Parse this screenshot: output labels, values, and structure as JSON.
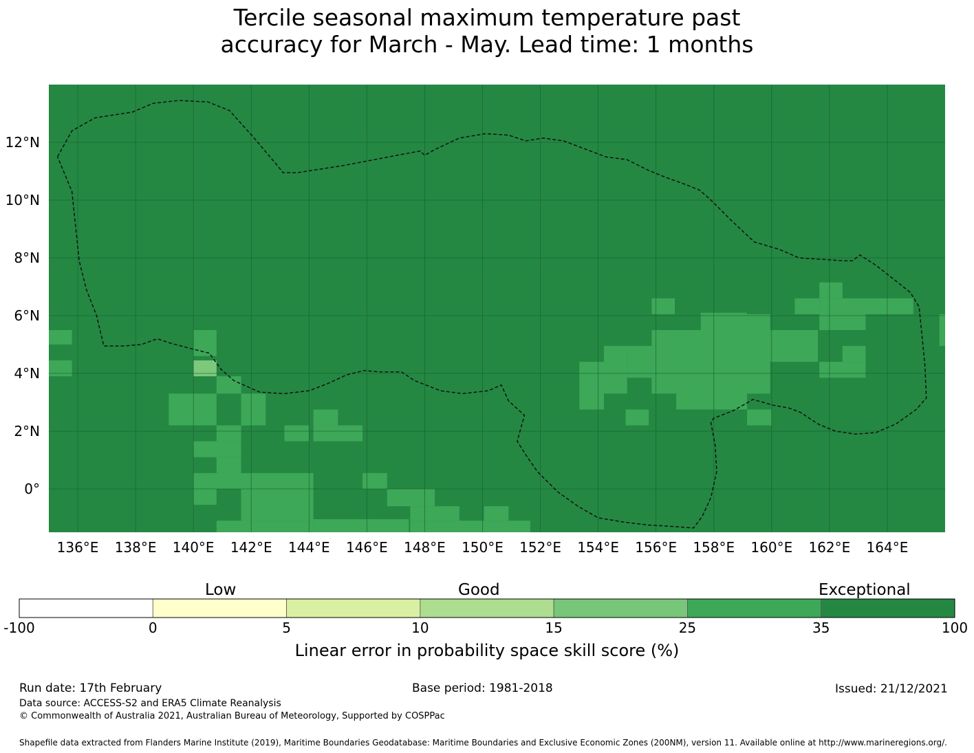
{
  "title_line1": "Tercile seasonal maximum temperature past",
  "title_line2": "accuracy for March - May. Lead time: 1 months",
  "map": {
    "lon_range": [
      135,
      166
    ],
    "lat_range": [
      -1.5,
      14
    ],
    "lon_ticks": [
      "136°E",
      "138°E",
      "140°E",
      "142°E",
      "144°E",
      "146°E",
      "148°E",
      "150°E",
      "152°E",
      "154°E",
      "156°E",
      "158°E",
      "160°E",
      "162°E",
      "164°E"
    ],
    "lat_ticks": [
      "12°N",
      "10°N",
      "8°N",
      "6°N",
      "4°N",
      "2°N",
      "0°"
    ],
    "background_color": "#248843",
    "cell_colors": {
      "A": "#3da858",
      "B": "#7dc97c"
    },
    "cells": [
      {
        "lon": 135,
        "lat": 5,
        "w": 0.8,
        "h": 0.5,
        "c": "A"
      },
      {
        "lon": 135,
        "lat": 3.9,
        "w": 0.8,
        "h": 0.55,
        "c": "A"
      },
      {
        "lon": 140,
        "lat": 4.6,
        "w": 0.8,
        "h": 0.9,
        "c": "A"
      },
      {
        "lon": 140,
        "lat": 3.9,
        "w": 0.8,
        "h": 0.55,
        "c": "B"
      },
      {
        "lon": 140.8,
        "lat": 3.3,
        "w": 0.85,
        "h": 0.6,
        "c": "A"
      },
      {
        "lon": 139.15,
        "lat": 2.2,
        "w": 1.65,
        "h": 1.1,
        "c": "A"
      },
      {
        "lon": 141.65,
        "lat": 2.2,
        "w": 0.85,
        "h": 1.1,
        "c": "A"
      },
      {
        "lon": 143.15,
        "lat": 1.65,
        "w": 0.85,
        "h": 0.55,
        "c": "A"
      },
      {
        "lon": 144.15,
        "lat": 1.65,
        "w": 1.7,
        "h": 0.55,
        "c": "A"
      },
      {
        "lon": 144.15,
        "lat": 2.2,
        "w": 0.85,
        "h": 0.55,
        "c": "A"
      },
      {
        "lon": 140.8,
        "lat": 1.65,
        "w": 0.85,
        "h": 0.55,
        "c": "A"
      },
      {
        "lon": 140,
        "lat": 1.1,
        "w": 1.65,
        "h": 0.55,
        "c": "A"
      },
      {
        "lon": 140.8,
        "lat": 0.55,
        "w": 0.85,
        "h": 0.55,
        "c": "A"
      },
      {
        "lon": 140,
        "lat": 0,
        "w": 4.15,
        "h": 0.55,
        "c": "A"
      },
      {
        "lon": 140,
        "lat": -0.55,
        "w": 0.8,
        "h": 0.55,
        "c": "A"
      },
      {
        "lon": 141.65,
        "lat": -1.1,
        "w": 2.5,
        "h": 1.1,
        "c": "A"
      },
      {
        "lon": 140.8,
        "lat": -1.5,
        "w": 3.35,
        "h": 0.4,
        "c": "A"
      },
      {
        "lon": 144.15,
        "lat": -1.5,
        "w": 3.3,
        "h": 0.45,
        "c": "A"
      },
      {
        "lon": 145.85,
        "lat": 0,
        "w": 0.85,
        "h": 0.55,
        "c": "A"
      },
      {
        "lon": 146.7,
        "lat": -0.6,
        "w": 1.65,
        "h": 0.6,
        "c": "A"
      },
      {
        "lon": 147.5,
        "lat": -1.1,
        "w": 1.7,
        "h": 0.5,
        "c": "A"
      },
      {
        "lon": 147.5,
        "lat": -1.5,
        "w": 2.55,
        "h": 0.4,
        "c": "A"
      },
      {
        "lon": 150.05,
        "lat": -1.1,
        "w": 0.85,
        "h": 0.5,
        "c": "A"
      },
      {
        "lon": 150.05,
        "lat": -1.5,
        "w": 1.6,
        "h": 0.4,
        "c": "A"
      },
      {
        "lon": 153.35,
        "lat": 2.75,
        "w": 0.85,
        "h": 1.65,
        "c": "A"
      },
      {
        "lon": 154.2,
        "lat": 3.3,
        "w": 0.8,
        "h": 1.65,
        "c": "A"
      },
      {
        "lon": 155,
        "lat": 3.85,
        "w": 0.85,
        "h": 1.1,
        "c": "A"
      },
      {
        "lon": 155.85,
        "lat": 3.3,
        "w": 0.85,
        "h": 2.2,
        "c": "A"
      },
      {
        "lon": 156.7,
        "lat": 2.75,
        "w": 2.45,
        "h": 2.75,
        "c": "A"
      },
      {
        "lon": 157.55,
        "lat": 5.5,
        "w": 1.6,
        "h": 0.6,
        "c": "A"
      },
      {
        "lon": 159.15,
        "lat": 3.3,
        "w": 0.8,
        "h": 2.75,
        "c": "A"
      },
      {
        "lon": 155.85,
        "lat": 6.05,
        "w": 0.8,
        "h": 0.55,
        "c": "A"
      },
      {
        "lon": 154.95,
        "lat": 2.2,
        "w": 0.8,
        "h": 0.55,
        "c": "A"
      },
      {
        "lon": 159.15,
        "lat": 2.2,
        "w": 0.85,
        "h": 0.55,
        "c": "A"
      },
      {
        "lon": 159.95,
        "lat": 4.4,
        "w": 1.65,
        "h": 1.1,
        "c": "A"
      },
      {
        "lon": 160.8,
        "lat": 6.05,
        "w": 0.85,
        "h": 0.55,
        "c": "A"
      },
      {
        "lon": 161.65,
        "lat": 5.5,
        "w": 1.6,
        "h": 1.1,
        "c": "A"
      },
      {
        "lon": 161.65,
        "lat": 6.6,
        "w": 0.8,
        "h": 0.55,
        "c": "A"
      },
      {
        "lon": 163.25,
        "lat": 6.05,
        "w": 1.65,
        "h": 0.55,
        "c": "A"
      },
      {
        "lon": 161.65,
        "lat": 3.85,
        "w": 1.6,
        "h": 0.55,
        "c": "A"
      },
      {
        "lon": 162.45,
        "lat": 4.4,
        "w": 0.8,
        "h": 0.55,
        "c": "A"
      },
      {
        "lon": 165.8,
        "lat": 4.95,
        "w": 0.2,
        "h": 1.1,
        "c": "A"
      }
    ],
    "boundary": [
      [
        135.3,
        11.5
      ],
      [
        135.8,
        12.4
      ],
      [
        136.6,
        12.85
      ],
      [
        137.9,
        13.05
      ],
      [
        138.6,
        13.35
      ],
      [
        139.5,
        13.45
      ],
      [
        140.5,
        13.4
      ],
      [
        141.25,
        13.1
      ],
      [
        142.1,
        12.15
      ],
      [
        142.9,
        11.2
      ],
      [
        143.1,
        10.95
      ],
      [
        143.6,
        10.95
      ],
      [
        145.2,
        11.2
      ],
      [
        147.3,
        11.6
      ],
      [
        147.85,
        11.7
      ],
      [
        148,
        11.55
      ],
      [
        148.35,
        11.75
      ],
      [
        149.2,
        12.15
      ],
      [
        150.1,
        12.3
      ],
      [
        150.9,
        12.25
      ],
      [
        151.5,
        12.05
      ],
      [
        152.1,
        12.15
      ],
      [
        152.8,
        12.05
      ],
      [
        153.6,
        11.75
      ],
      [
        154.25,
        11.5
      ],
      [
        155,
        11.4
      ],
      [
        155.7,
        11.05
      ],
      [
        156.3,
        10.8
      ],
      [
        157,
        10.55
      ],
      [
        157.5,
        10.35
      ],
      [
        157.85,
        10.05
      ],
      [
        158.6,
        9.3
      ],
      [
        159.4,
        8.55
      ],
      [
        160.25,
        8.3
      ],
      [
        160.95,
        8
      ],
      [
        162.5,
        7.9
      ],
      [
        162.8,
        7.9
      ],
      [
        163.05,
        8.1
      ],
      [
        163.6,
        7.75
      ],
      [
        164.3,
        7.2
      ],
      [
        164.8,
        6.8
      ],
      [
        165.1,
        6.3
      ],
      [
        165.2,
        5.3
      ],
      [
        165.3,
        4.3
      ],
      [
        165.35,
        3.15
      ],
      [
        165.0,
        2.75
      ],
      [
        164.3,
        2.25
      ],
      [
        163.6,
        1.95
      ],
      [
        162.9,
        1.9
      ],
      [
        162.2,
        2
      ],
      [
        161.6,
        2.25
      ],
      [
        161.0,
        2.65
      ],
      [
        160.6,
        2.8
      ],
      [
        160.05,
        2.9
      ],
      [
        159.35,
        3.1
      ],
      [
        159.1,
        2.95
      ],
      [
        158.65,
        2.7
      ],
      [
        158.0,
        2.45
      ],
      [
        157.9,
        2.3
      ],
      [
        158.05,
        1.5
      ],
      [
        158.1,
        0.6
      ],
      [
        157.9,
        -0.3
      ],
      [
        157.6,
        -0.95
      ],
      [
        157.3,
        -1.35
      ],
      [
        156.6,
        -1.3
      ],
      [
        155.75,
        -1.25
      ],
      [
        154.9,
        -1.15
      ],
      [
        154.0,
        -1.0
      ],
      [
        153.3,
        -0.6
      ],
      [
        152.6,
        -0.1
      ],
      [
        151.9,
        0.6
      ],
      [
        151.55,
        1.1
      ],
      [
        151.2,
        1.65
      ],
      [
        151.45,
        2.55
      ],
      [
        150.9,
        3.05
      ],
      [
        150.65,
        3.6
      ],
      [
        150.2,
        3.4
      ],
      [
        149.3,
        3.3
      ],
      [
        148.55,
        3.4
      ],
      [
        147.65,
        3.75
      ],
      [
        147.2,
        4.05
      ],
      [
        146.45,
        4.05
      ],
      [
        145.9,
        4.1
      ],
      [
        145.3,
        3.95
      ],
      [
        144.65,
        3.65
      ],
      [
        144.0,
        3.4
      ],
      [
        143.15,
        3.3
      ],
      [
        142.3,
        3.35
      ],
      [
        141.4,
        3.75
      ],
      [
        140.95,
        4.15
      ],
      [
        140.55,
        4.7
      ],
      [
        139.95,
        4.85
      ],
      [
        139.2,
        5.05
      ],
      [
        138.75,
        5.2
      ],
      [
        138.2,
        5.0
      ],
      [
        137.6,
        4.95
      ],
      [
        136.9,
        4.95
      ],
      [
        136.65,
        6.0
      ],
      [
        136.3,
        6.9
      ],
      [
        136.05,
        7.9
      ],
      [
        135.8,
        10.3
      ],
      [
        135.3,
        11.5
      ]
    ]
  },
  "colorbar": {
    "category_labels": [
      "Low",
      "Good",
      "Exceptional"
    ],
    "tick_labels": [
      "-100",
      "0",
      "5",
      "10",
      "15",
      "25",
      "35",
      "100"
    ],
    "colors": [
      "#ffffff",
      "#ffffcc",
      "#d9f0a3",
      "#addd8e",
      "#78c679",
      "#3da858",
      "#248843"
    ],
    "axis_label": "Linear error in probability space skill score (%)"
  },
  "footer": {
    "run_date": "Run date: 17th February",
    "base_period": "Base period: 1981-2018",
    "issued": "Issued: 21/12/2021",
    "data_source": "Data source: ACCESS-S2 and ERA5 Climate Reanalysis",
    "copyright": "© Commonwealth of Australia 2021, Australian Bureau of Meteorology, Supported by COSPPac",
    "shapefile": "Shapefile data extracted from Flanders Marine Institute (2019), Maritime Boundaries Geodatabase: Maritime Boundaries and Exclusive Economic Zones (200NM), version 11. Available online at http://www.marineregions.org/."
  }
}
